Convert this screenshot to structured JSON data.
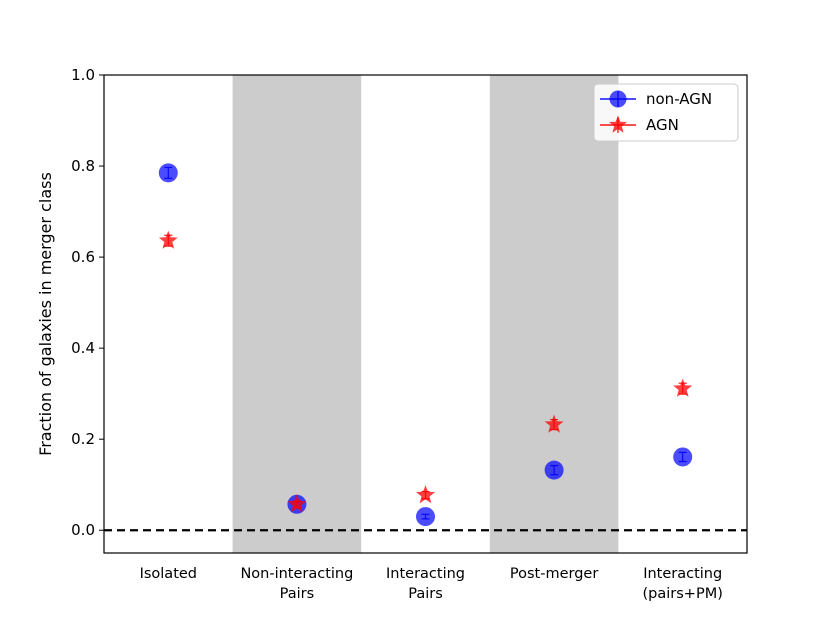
{
  "chart_data": {
    "type": "scatter",
    "ylabel": "Fraction of galaxies in merger class",
    "ylim": [
      -0.05,
      1.0
    ],
    "yticks": [
      "0.0",
      "0.2",
      "0.4",
      "0.6",
      "0.8",
      "1.0"
    ],
    "categories": [
      [
        "Isolated"
      ],
      [
        "Non-interacting",
        "Pairs"
      ],
      [
        "Interacting",
        "Pairs"
      ],
      [
        "Post-merger"
      ],
      [
        "Interacting",
        "(pairs+PM)"
      ]
    ],
    "shaded_categories": [
      1,
      3
    ],
    "shade_color": "#cccccc",
    "reference_line": {
      "y": 0.0,
      "style": "dashed",
      "color": "#000000"
    },
    "legend": {
      "position": "top-right",
      "entries": [
        "non-AGN",
        "AGN"
      ]
    },
    "series": [
      {
        "name": "non-AGN",
        "marker": "circle",
        "color": "#0000ff",
        "values": [
          0.785,
          0.057,
          0.03,
          0.132,
          0.161
        ],
        "errors": [
          0.012,
          0.007,
          0.005,
          0.01,
          0.01
        ]
      },
      {
        "name": "AGN",
        "marker": "star",
        "color": "#ff0000",
        "values": [
          0.636,
          0.057,
          0.077,
          0.232,
          0.311
        ],
        "errors": [
          0.012,
          0.007,
          0.008,
          0.011,
          0.012
        ]
      }
    ]
  }
}
